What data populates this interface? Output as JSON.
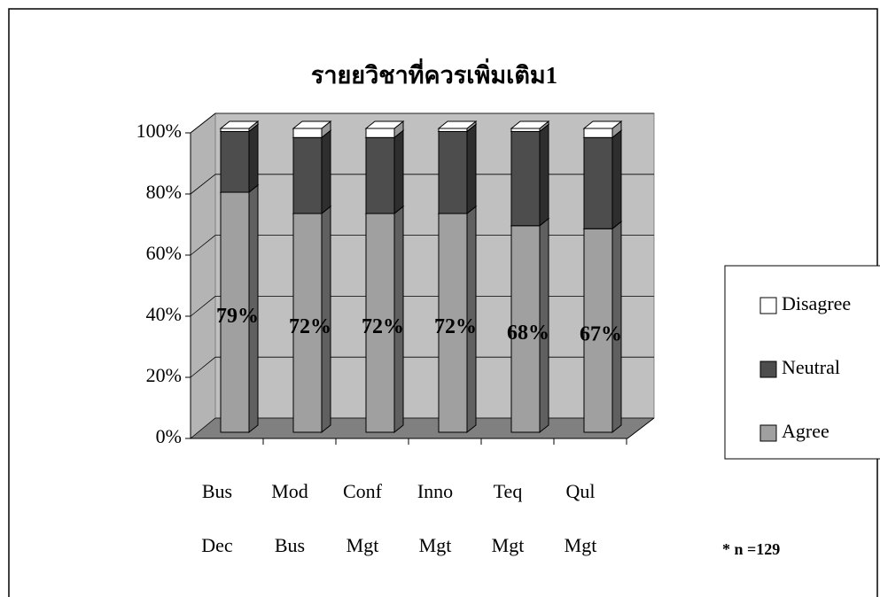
{
  "chart_data": {
    "type": "bar",
    "stacked": true,
    "title": "รายยวิชาที่ควรเพิ่มเติม1",
    "categories": [
      [
        "Bus",
        "Dec"
      ],
      [
        "Mod",
        "Bus"
      ],
      [
        "Conf",
        "Mgt"
      ],
      [
        "Inno",
        "Mgt"
      ],
      [
        "Teq",
        "Mgt"
      ],
      [
        "Qul",
        "Mgt"
      ]
    ],
    "series": [
      {
        "name": "Agree",
        "color": "#a0a0a0",
        "values": [
          79,
          72,
          72,
          72,
          68,
          67
        ],
        "value_labels": [
          "79%",
          "72%",
          "72%",
          "72%",
          "68%",
          "67%"
        ]
      },
      {
        "name": "Neutral",
        "color": "#4d4d4d",
        "values": [
          20,
          25,
          25,
          27,
          31,
          30
        ]
      },
      {
        "name": "Disagree",
        "color": "#ffffff",
        "values": [
          1,
          3,
          3,
          1,
          1,
          3
        ]
      }
    ],
    "ylim": [
      0,
      100
    ],
    "yticks": [
      {
        "value": 0,
        "label": "0%"
      },
      {
        "value": 20,
        "label": "20%"
      },
      {
        "value": 40,
        "label": "40%"
      },
      {
        "value": 60,
        "label": "60%"
      },
      {
        "value": 80,
        "label": "80%"
      },
      {
        "value": 100,
        "label": "100%"
      }
    ],
    "grid": true,
    "legend": "right",
    "annotation": "* n =129"
  }
}
